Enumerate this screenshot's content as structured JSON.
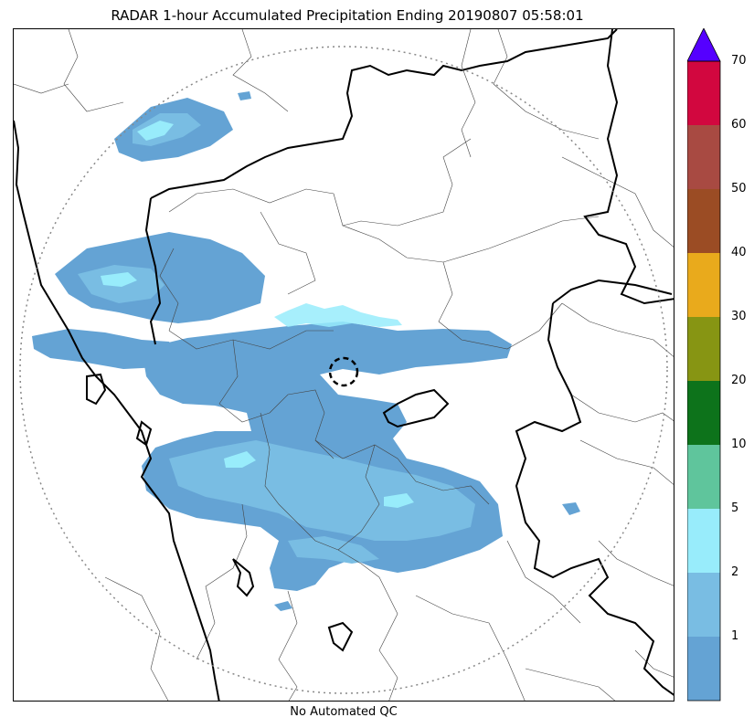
{
  "title": "RADAR 1-hour Accumulated Precipitation Ending 20190807 05:58:01",
  "qc_label": "No Automated QC",
  "colorbar": {
    "ticks": [
      "1",
      "2",
      "5",
      "10",
      "20",
      "30",
      "40",
      "50",
      "60",
      "70"
    ],
    "colors": [
      "#64a3d4",
      "#79bde3",
      "#98ecfb",
      "#5fc59c",
      "#0d731b",
      "#879513",
      "#e9aa1c",
      "#9b4c24",
      "#a84a42",
      "#d2073f"
    ],
    "extend_color": "#5500ff"
  },
  "map": {
    "rain_colors": {
      "light": "#64a3d4",
      "medium": "#79bde3",
      "heavy": "#98ecfb"
    },
    "range_ring": "dotted-circle",
    "radar_site": "dashed-circle"
  }
}
